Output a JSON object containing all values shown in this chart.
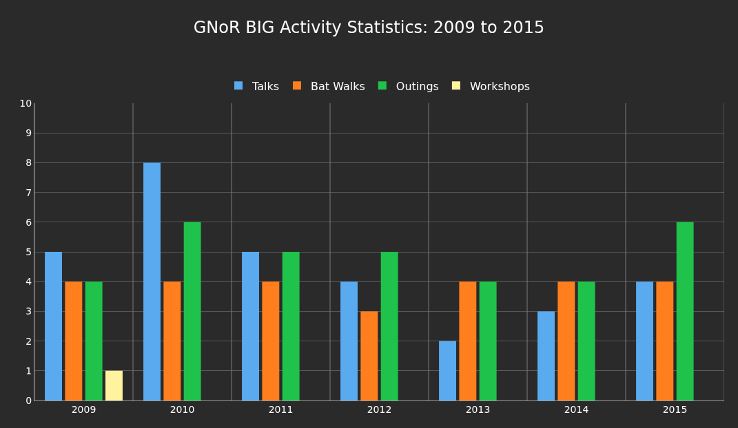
{
  "chart_data": {
    "type": "bar",
    "title": "GNoR BIG Activity Statistics: 2009 to 2015",
    "categories": [
      "2009",
      "2010",
      "2011",
      "2012",
      "2013",
      "2014",
      "2015"
    ],
    "series": [
      {
        "name": "Talks",
        "color": "#5aaaf0",
        "values": [
          5,
          8,
          5,
          4,
          2,
          3,
          4
        ]
      },
      {
        "name": "Bat Walks",
        "color": "#ff7f1e",
        "values": [
          4,
          4,
          4,
          3,
          4,
          4,
          4
        ]
      },
      {
        "name": "Outings",
        "color": "#1fc24a",
        "values": [
          4,
          6,
          5,
          5,
          4,
          4,
          6
        ]
      },
      {
        "name": "Workshops",
        "color": "#fff3a0",
        "values": [
          1,
          0,
          0,
          0,
          0,
          0,
          0
        ]
      }
    ],
    "ylim": [
      0,
      10
    ],
    "yticks": [
      0,
      1,
      2,
      3,
      4,
      5,
      6,
      7,
      8,
      9,
      10
    ],
    "grid": true,
    "legend": "top"
  }
}
